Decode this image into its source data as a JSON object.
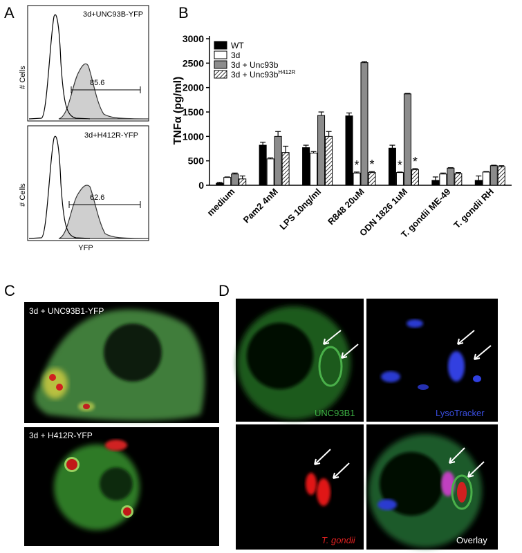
{
  "panel_labels": [
    "A",
    "B",
    "C",
    "D"
  ],
  "flow": {
    "y_label": "# Cells",
    "x_label": "YFP",
    "panels": [
      {
        "title": "3d+UNC93B-YFP",
        "gate": 85.6
      },
      {
        "title": "3d+H412R-YFP",
        "gate": 62.6
      }
    ]
  },
  "chart_data": {
    "type": "bar",
    "y_label": "TNFα (pg/ml)",
    "categories": [
      "medium",
      "Pam2 4nM",
      "LPS 10ng/ml",
      "R848 20uM",
      "ODN 1826 1uM",
      "T. gondii ME-49",
      "T. gondii RH"
    ],
    "ylim": [
      0,
      3000
    ],
    "yticks": [
      0,
      500,
      1000,
      1500,
      2000,
      2500,
      3000
    ],
    "series": [
      {
        "name": "WT",
        "color": "#000000",
        "values": [
          40,
          820,
          770,
          1420,
          760,
          100,
          100
        ],
        "errors": [
          20,
          60,
          50,
          60,
          60,
          70,
          90
        ]
      },
      {
        "name": "3d",
        "color": "#ffffff",
        "values": [
          160,
          540,
          660,
          250,
          260,
          230,
          270
        ],
        "errors": [
          10,
          20,
          30,
          20,
          10,
          20,
          10
        ],
        "annotations": [
          null,
          null,
          null,
          "*",
          "*",
          null,
          null
        ]
      },
      {
        "name": "3d + Unc93b",
        "color": "#8c8c8c",
        "values": [
          230,
          1000,
          1430,
          2510,
          1870,
          350,
          400
        ],
        "errors": [
          20,
          100,
          70,
          20,
          10,
          10,
          10
        ]
      },
      {
        "name": "3d + Unc93b",
        "name_superscript": "H412R",
        "color": "#ffffff",
        "hatch": true,
        "values": [
          130,
          670,
          1000,
          260,
          320,
          240,
          380
        ],
        "errors": [
          60,
          130,
          100,
          20,
          20,
          20,
          20
        ],
        "annotations": [
          null,
          null,
          null,
          "*",
          "*",
          null,
          null
        ]
      }
    ]
  },
  "panel_c": {
    "captions": [
      "3d + UNC93B1-YFP",
      "3d + H412R-YFP"
    ]
  },
  "panel_d": {
    "captions": [
      "UNC93B1",
      "LysoTracker",
      "T. gondii",
      "Overlay"
    ]
  }
}
